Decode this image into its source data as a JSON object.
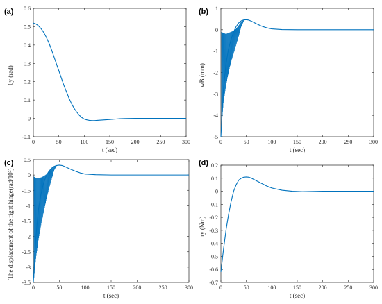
{
  "chart_data": [
    {
      "panel": "(a)",
      "type": "line",
      "xlabel": "t (sec)",
      "ylabel": "θy (rad)",
      "xlim": [
        0,
        300
      ],
      "ylim": [
        -0.1,
        0.6
      ],
      "xticks": [
        0,
        50,
        100,
        150,
        200,
        250,
        300
      ],
      "yticks": [
        -0.1,
        0,
        0.1,
        0.2,
        0.3,
        0.4,
        0.5,
        0.6
      ],
      "ytick_labels": [
        "-0.1",
        "0",
        "0.1",
        "0.2",
        "0.3",
        "0.4",
        "0.5",
        "0.6"
      ],
      "color": "#0072BD",
      "series": [
        {
          "x": [
            0,
            5,
            10,
            15,
            20,
            25,
            30,
            35,
            40,
            45,
            50,
            55,
            60,
            65,
            70,
            75,
            80,
            85,
            90,
            95,
            100,
            105,
            110,
            115,
            120,
            125,
            130,
            140,
            150,
            160,
            170,
            180,
            200,
            220,
            250,
            300
          ],
          "y": [
            0.52,
            0.515,
            0.505,
            0.49,
            0.47,
            0.445,
            0.415,
            0.38,
            0.34,
            0.3,
            0.26,
            0.22,
            0.18,
            0.145,
            0.11,
            0.08,
            0.055,
            0.035,
            0.018,
            0.005,
            -0.004,
            -0.008,
            -0.011,
            -0.012,
            -0.012,
            -0.011,
            -0.01,
            -0.008,
            -0.006,
            -0.004,
            -0.002,
            -0.001,
            0,
            0,
            0,
            0
          ]
        }
      ]
    },
    {
      "panel": "(b)",
      "type": "line",
      "xlabel": "t (sec)",
      "ylabel": "wB (mm)",
      "xlim": [
        0,
        300
      ],
      "ylim": [
        -5,
        1
      ],
      "xticks": [
        0,
        50,
        100,
        150,
        200,
        250,
        300
      ],
      "yticks": [
        -5,
        -4,
        -3,
        -2,
        -1,
        0,
        1
      ],
      "ytick_labels": [
        "-5",
        "-4",
        "-3",
        "-2",
        "-1",
        "0",
        "1"
      ],
      "color": "#0072BD",
      "series": [
        {
          "x": [
            0,
            5,
            10,
            15,
            20,
            25,
            30,
            35,
            40,
            45,
            50,
            55,
            60,
            70,
            80,
            90,
            100,
            120,
            150,
            200,
            250,
            300
          ],
          "y": [
            -5,
            -2.8,
            -1.6,
            -0.9,
            -0.45,
            -0.1,
            0.15,
            0.32,
            0.42,
            0.46,
            0.47,
            0.45,
            0.4,
            0.28,
            0.17,
            0.09,
            0.04,
            0.01,
            0,
            0,
            0,
            0
          ]
        }
      ],
      "oscillation_envelope": {
        "x": [
          1,
          5,
          10,
          15,
          20,
          25,
          30,
          35,
          40,
          45
        ],
        "low": [
          -4.5,
          -3.4,
          -2.6,
          -2.0,
          -1.5,
          -1.1,
          -0.7,
          -0.3,
          0.15,
          0.4
        ],
        "high": [
          -0.1,
          -0.15,
          -0.2,
          -0.15,
          -0.1,
          -0.05,
          0.05,
          0.2,
          0.38,
          0.46
        ]
      }
    },
    {
      "panel": "(c)",
      "type": "line",
      "xlabel": "t (sec)",
      "ylabel": "The displacement of the right hinge(rad/10²)",
      "xlim": [
        0,
        300
      ],
      "ylim": [
        -3.5,
        0.5
      ],
      "xticks": [
        0,
        50,
        100,
        150,
        200,
        250,
        300
      ],
      "yticks": [
        -3.5,
        -3,
        -2.5,
        -2,
        -1.5,
        -1,
        -0.5,
        0,
        0.5
      ],
      "ytick_labels": [
        "-3.5",
        "-3",
        "-2.5",
        "-2",
        "-1.5",
        "-1",
        "-0.5",
        "0",
        "0.5"
      ],
      "color": "#0072BD",
      "series": [
        {
          "x": [
            0,
            5,
            10,
            15,
            20,
            25,
            30,
            35,
            40,
            45,
            50,
            55,
            60,
            70,
            80,
            90,
            100,
            120,
            150,
            200,
            250,
            300
          ],
          "y": [
            -3.5,
            -2.0,
            -1.1,
            -0.6,
            -0.25,
            -0.02,
            0.12,
            0.22,
            0.28,
            0.31,
            0.32,
            0.31,
            0.28,
            0.2,
            0.13,
            0.07,
            0.03,
            0.01,
            0,
            0,
            0,
            0
          ]
        }
      ],
      "oscillation_envelope": {
        "x": [
          1,
          5,
          10,
          15,
          20,
          25,
          30,
          35,
          40,
          45
        ],
        "low": [
          -3.4,
          -2.7,
          -2.1,
          -1.6,
          -1.2,
          -0.8,
          -0.45,
          -0.15,
          0.15,
          0.3
        ],
        "high": [
          -0.05,
          -0.1,
          -0.1,
          -0.08,
          -0.04,
          0.02,
          0.1,
          0.2,
          0.27,
          0.31
        ]
      }
    },
    {
      "panel": "(d)",
      "type": "line",
      "xlabel": "t (sec)",
      "ylabel": "τy (Nm)",
      "xlim": [
        0,
        300
      ],
      "ylim": [
        -0.7,
        0.2
      ],
      "xticks": [
        0,
        50,
        100,
        150,
        200,
        250,
        300
      ],
      "yticks": [
        -0.7,
        -0.6,
        -0.5,
        -0.4,
        -0.3,
        -0.2,
        -0.1,
        0,
        0.1,
        0.2
      ],
      "ytick_labels": [
        "-0.7",
        "-0.6",
        "-0.5",
        "-0.4",
        "-0.3",
        "-0.2",
        "-0.1",
        "0",
        "0.1",
        "0.2"
      ],
      "color": "#0072BD",
      "series": [
        {
          "x": [
            0,
            5,
            10,
            15,
            20,
            25,
            30,
            35,
            40,
            45,
            50,
            55,
            60,
            70,
            80,
            90,
            100,
            120,
            140,
            160,
            200,
            250,
            300
          ],
          "y": [
            -0.62,
            -0.45,
            -0.3,
            -0.18,
            -0.08,
            0.0,
            0.05,
            0.085,
            0.1,
            0.108,
            0.11,
            0.108,
            0.1,
            0.08,
            0.06,
            0.04,
            0.025,
            0.008,
            0,
            -0.003,
            0,
            0,
            0
          ]
        }
      ]
    }
  ]
}
